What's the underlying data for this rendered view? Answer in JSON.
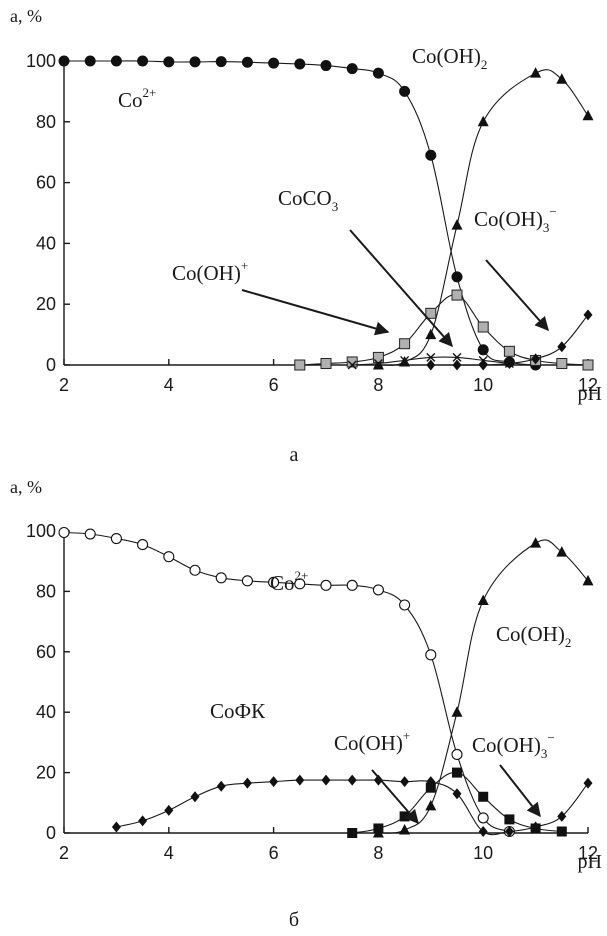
{
  "chart_data": [
    {
      "type": "line",
      "panel_label": "а",
      "ylabel": "а, %",
      "xlabel": "pH",
      "xlim": [
        2,
        12
      ],
      "ylim": [
        0,
        100
      ],
      "xticks": [
        2,
        4,
        6,
        8,
        10,
        12
      ],
      "yticks": [
        0,
        20,
        40,
        60,
        80,
        100
      ],
      "grid": false,
      "series": [
        {
          "name": "Co2+",
          "marker": "filled-circle",
          "x": [
            2,
            2.5,
            3,
            3.5,
            4,
            4.5,
            5,
            5.5,
            6,
            6.5,
            7,
            7.5,
            8,
            8.5,
            9,
            9.5,
            10,
            10.5,
            11
          ],
          "y": [
            100,
            100,
            100,
            100,
            99.7,
            99.7,
            99.8,
            99.6,
            99.3,
            99,
            98.5,
            97.5,
            96,
            90,
            69,
            29,
            5,
            1,
            0
          ]
        },
        {
          "name": "Co(OH)2",
          "marker": "filled-triangle",
          "x": [
            8,
            8.5,
            9,
            9.5,
            10,
            11,
            11.5,
            12
          ],
          "y": [
            0,
            1,
            10,
            46,
            80,
            96,
            94,
            82
          ]
        },
        {
          "name": "CoCO3",
          "marker": "gray-square",
          "x": [
            6.5,
            7,
            7.5,
            8,
            8.5,
            9,
            9.5,
            10,
            10.5,
            11,
            11.5,
            12
          ],
          "y": [
            0,
            0.5,
            1,
            2.5,
            7,
            17,
            23,
            12.5,
            4.5,
            1.5,
            0.5,
            0
          ]
        },
        {
          "name": "Co(OH)+",
          "marker": "cross",
          "x": [
            7.5,
            8,
            8.5,
            9,
            9.5,
            10,
            10.5
          ],
          "y": [
            0,
            0.5,
            1.5,
            2.5,
            2.5,
            1.5,
            0.5
          ]
        },
        {
          "name": "Co(OH)3-",
          "marker": "filled-diamond",
          "x": [
            9,
            9.5,
            10,
            10.5,
            11,
            11.5,
            12
          ],
          "y": [
            0,
            0,
            0,
            0.5,
            2,
            6,
            16.5
          ]
        }
      ],
      "annotations": [
        {
          "id": "co2",
          "base": "Co",
          "sup": "2+"
        },
        {
          "id": "cooh2",
          "base": "Co(OH)",
          "sub": "2"
        },
        {
          "id": "coco3",
          "base": "CoCO",
          "sub": "3"
        },
        {
          "id": "cooh3",
          "base": "Co(OH)",
          "sub": "3",
          "sup": "−"
        },
        {
          "id": "cooh",
          "base": "Co(OH)",
          "sup": "+"
        }
      ]
    },
    {
      "type": "line",
      "panel_label": "б",
      "ylabel": "а, %",
      "xlabel": "pH",
      "xlim": [
        2,
        12
      ],
      "ylim": [
        0,
        100
      ],
      "xticks": [
        2,
        4,
        6,
        8,
        10,
        12
      ],
      "yticks": [
        0,
        20,
        40,
        60,
        80,
        100
      ],
      "grid": false,
      "series": [
        {
          "name": "Co2+",
          "marker": "open-circle",
          "x": [
            2,
            2.5,
            3,
            3.5,
            4,
            4.5,
            5,
            5.5,
            6,
            6.5,
            7,
            7.5,
            8,
            8.5,
            9,
            9.5,
            10,
            10.5
          ],
          "y": [
            99.5,
            99,
            97.5,
            95.5,
            91.5,
            87,
            84.5,
            83.5,
            83,
            82.5,
            82,
            82,
            80.5,
            75.5,
            59,
            26,
            5,
            0.5
          ]
        },
        {
          "name": "CoФК",
          "marker": "filled-diamond",
          "x": [
            3,
            3.5,
            4,
            4.5,
            5,
            5.5,
            6,
            6.5,
            7,
            7.5,
            8,
            8.5,
            9,
            9.5,
            10,
            10.5,
            11,
            11.5,
            12
          ],
          "y": [
            2,
            4,
            7.5,
            12,
            15.5,
            16.5,
            17,
            17.5,
            17.5,
            17.5,
            17.5,
            17,
            17,
            13,
            0.5,
            0.5,
            2,
            5.5,
            16.5
          ]
        },
        {
          "name": "Co(OH)2",
          "marker": "filled-triangle",
          "x": [
            8,
            8.5,
            9,
            9.5,
            10,
            11,
            11.5,
            12
          ],
          "y": [
            0,
            1,
            9,
            40,
            77,
            96,
            93,
            83.5
          ]
        },
        {
          "name": "Co(OH)+",
          "marker": "filled-square",
          "x": [
            7.5,
            8,
            8.5,
            9,
            9.5,
            10,
            10.5,
            11,
            11.5
          ],
          "y": [
            0,
            1.5,
            5.5,
            15,
            20,
            12,
            4.5,
            1.5,
            0.5
          ]
        }
      ],
      "annotations": [
        {
          "id": "co2",
          "base": "Co",
          "sup": "2+"
        },
        {
          "id": "cooh2",
          "base": "Co(OH)",
          "sub": "2"
        },
        {
          "id": "cofk",
          "base": "CoФК"
        },
        {
          "id": "cooh",
          "base": "Co(OH)",
          "sup": "+"
        },
        {
          "id": "cooh3",
          "base": "Co(OH)",
          "sub": "3",
          "sup": "−"
        }
      ]
    }
  ]
}
